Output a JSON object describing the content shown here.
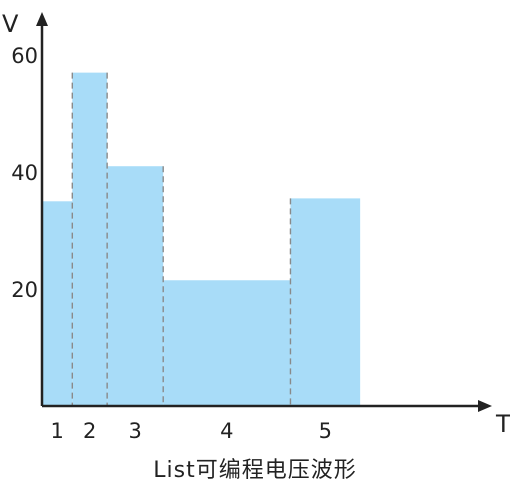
{
  "chart_data": {
    "type": "bar",
    "title": "List可编程电压波形",
    "xlabel": "T",
    "ylabel": "V",
    "categories": [
      "1",
      "2",
      "3",
      "4",
      "5"
    ],
    "segment_widths": [
      1,
      1.15,
      1.85,
      4.2,
      2.3
    ],
    "values": [
      35,
      57,
      41,
      21.5,
      35.5
    ],
    "y_ticks": [
      "20",
      "40",
      "60"
    ],
    "y_tick_values": [
      20,
      40,
      60
    ],
    "ylim": [
      0,
      66
    ],
    "grid": false,
    "bar_color": "#a8dcf8",
    "divider_color": "#8a8a8a"
  }
}
